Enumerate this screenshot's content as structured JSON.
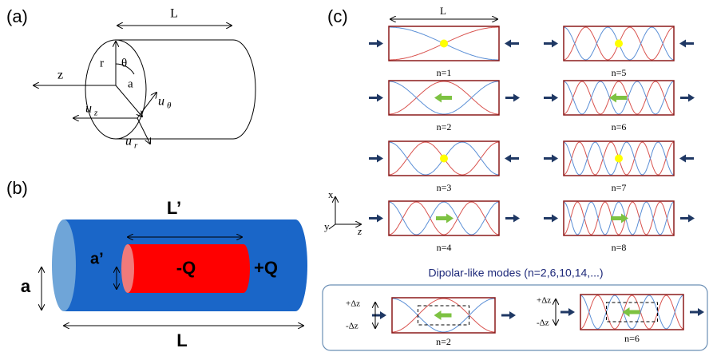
{
  "panel_a": {
    "label": "(a)",
    "length": "L",
    "radius": "r",
    "angle": "θ",
    "axis": "z",
    "a": "a",
    "u_z": {
      "base": "u",
      "sub": "z"
    },
    "u_theta": {
      "base": "u",
      "sub": "θ"
    },
    "u_r": {
      "base": "u",
      "sub": "r"
    }
  },
  "panel_b": {
    "label": "(b)",
    "inner_length": "L’",
    "inner_radius": "a’",
    "inner_charge": "-Q",
    "outer_charge": "+Q",
    "outer_radius": "a",
    "outer_length": "L"
  },
  "panel_c": {
    "label": "(c)",
    "length": "L",
    "modes": [
      {
        "label": "n=1"
      },
      {
        "label": "n=2"
      },
      {
        "label": "n=3"
      },
      {
        "label": "n=4"
      },
      {
        "label": "n=5"
      },
      {
        "label": "n=6"
      },
      {
        "label": "n=7"
      },
      {
        "label": "n=8"
      }
    ],
    "axes": {
      "x": "x",
      "y": "y",
      "z": "z"
    },
    "dipolar": {
      "title": "Dipolar-like modes (n=2,6,10,14,...)",
      "modes": [
        {
          "label": "n=2",
          "plus": "+Δz",
          "minus": "-Δz"
        },
        {
          "label": "n=6",
          "plus": "+Δz",
          "minus": "-Δz"
        }
      ]
    }
  }
}
